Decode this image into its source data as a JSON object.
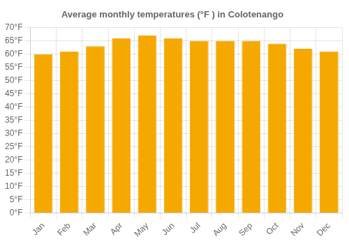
{
  "chart_data": {
    "type": "bar",
    "title": "Average monthly temperatures (°F ) in Colotenango",
    "categories": [
      "Jan",
      "Feb",
      "Mar",
      "Apr",
      "May",
      "Jun",
      "Jul",
      "Aug",
      "Sep",
      "Oct",
      "Nov",
      "Dec"
    ],
    "values": [
      60,
      61,
      63,
      66,
      67,
      66,
      65,
      65,
      65,
      64,
      62,
      61
    ],
    "color": "#F5A800",
    "ylim": [
      0,
      70
    ],
    "yticks": [
      {
        "value": 0,
        "label": "0°F"
      },
      {
        "value": 5,
        "label": "5°F"
      },
      {
        "value": 10,
        "label": "10°F"
      },
      {
        "value": 15,
        "label": "15°F"
      },
      {
        "value": 20,
        "label": "20°F"
      },
      {
        "value": 25,
        "label": "25°F"
      },
      {
        "value": 30,
        "label": "30°F"
      },
      {
        "value": 35,
        "label": "35°F"
      },
      {
        "value": 40,
        "label": "40°F"
      },
      {
        "value": 45,
        "label": "45°F"
      },
      {
        "value": 50,
        "label": "50°F"
      },
      {
        "value": 55,
        "label": "55°F"
      },
      {
        "value": 60,
        "label": "60°F"
      },
      {
        "value": 65,
        "label": "65°F"
      },
      {
        "value": 70,
        "label": "70°F"
      }
    ],
    "grid": true
  }
}
